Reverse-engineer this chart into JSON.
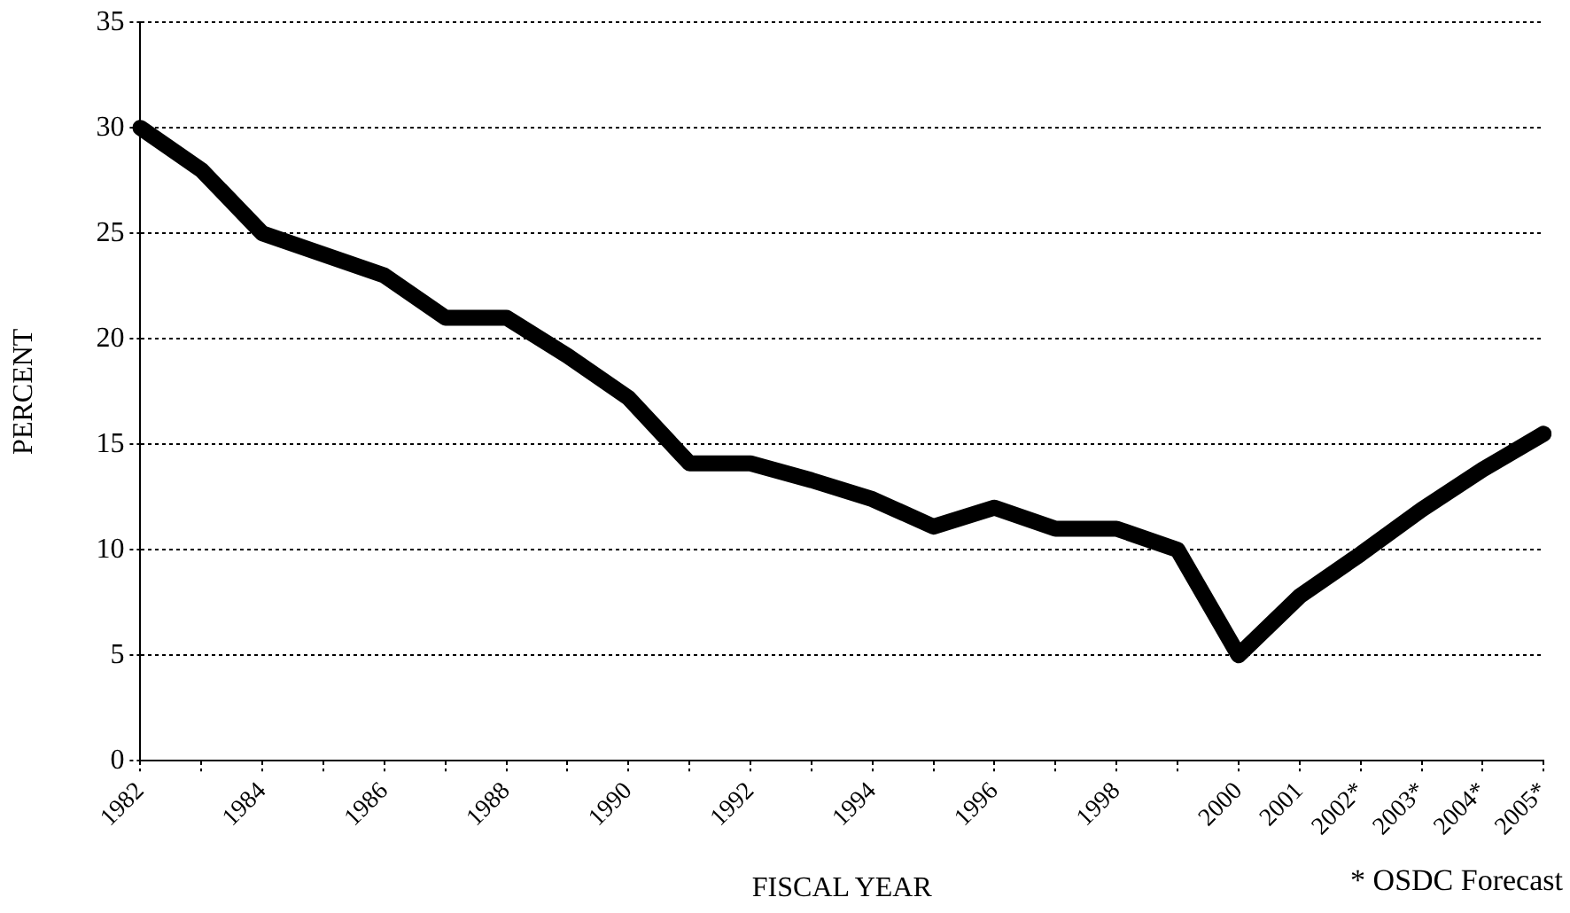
{
  "chart_data": {
    "type": "line",
    "xlabel": "FISCAL YEAR",
    "ylabel": "PERCENT",
    "annotations": [
      "* OSDC Forecast"
    ],
    "categories": [
      "1982",
      null,
      "1984",
      null,
      "1986",
      null,
      "1988",
      null,
      "1990",
      null,
      "1992",
      null,
      "1994",
      null,
      "1996",
      null,
      "1998",
      null,
      "2000",
      "2001",
      "2002*",
      "2003*",
      "2004*",
      "2005*"
    ],
    "series": [
      {
        "color": "#000000",
        "values": [
          30,
          28,
          25,
          24,
          23,
          21,
          21,
          19.2,
          17.2,
          14.1,
          14.1,
          13.3,
          12.4,
          11.1,
          12,
          11,
          11,
          10,
          5,
          7.8,
          9.8,
          11.9,
          13.8,
          15.5
        ]
      }
    ],
    "ylim": [
      0,
      35
    ],
    "yticks": [
      0,
      5,
      10,
      15,
      20,
      25,
      30,
      35
    ],
    "grid": "y",
    "legend": false,
    "marker": "none",
    "line_style": "solid"
  }
}
